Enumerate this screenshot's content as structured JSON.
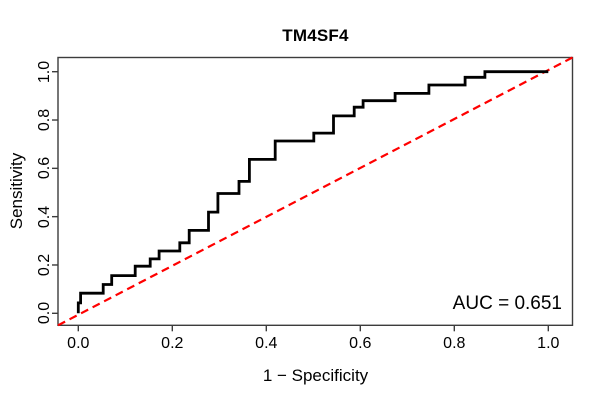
{
  "colors": {
    "frame": "#3c3c3c",
    "tick": "#3c3c3c",
    "text": "#000000",
    "roc_curve": "#000000",
    "diagonal": "#ff0000",
    "background": "#ffffff"
  },
  "chart_data": {
    "type": "line",
    "title": "TM4SF4",
    "xlabel": "1 − Specificity",
    "ylabel": "Sensitivity",
    "xlim": [
      0,
      1
    ],
    "ylim": [
      0,
      1
    ],
    "grid": false,
    "auc_text": "AUC = 0.651",
    "auc_value": 0.651,
    "x_ticks": {
      "values": [
        0,
        0.2,
        0.4,
        0.6,
        0.8,
        1.0
      ],
      "labels": [
        "0.0",
        "0.2",
        "0.4",
        "0.6",
        "0.8",
        "1.0"
      ]
    },
    "y_ticks": {
      "values": [
        0,
        0.2,
        0.4,
        0.6,
        0.8,
        1.0
      ],
      "labels": [
        "0.0",
        "0.2",
        "0.4",
        "0.6",
        "0.8",
        "1.0"
      ]
    },
    "series": [
      {
        "name": "ROC curve",
        "style": "step",
        "color": "#000000",
        "width": 2.8,
        "points": [
          [
            0,
            0
          ],
          [
            0,
            0.043
          ],
          [
            0.005,
            0.043
          ],
          [
            0.005,
            0.083
          ],
          [
            0.053,
            0.083
          ],
          [
            0.053,
            0.119
          ],
          [
            0.071,
            0.119
          ],
          [
            0.071,
            0.156
          ],
          [
            0.121,
            0.156
          ],
          [
            0.121,
            0.195
          ],
          [
            0.153,
            0.195
          ],
          [
            0.153,
            0.225
          ],
          [
            0.172,
            0.225
          ],
          [
            0.172,
            0.258
          ],
          [
            0.216,
            0.258
          ],
          [
            0.216,
            0.292
          ],
          [
            0.236,
            0.292
          ],
          [
            0.236,
            0.343
          ],
          [
            0.277,
            0.343
          ],
          [
            0.277,
            0.419
          ],
          [
            0.297,
            0.419
          ],
          [
            0.297,
            0.496
          ],
          [
            0.342,
            0.496
          ],
          [
            0.342,
            0.546
          ],
          [
            0.364,
            0.546
          ],
          [
            0.364,
            0.637
          ],
          [
            0.419,
            0.637
          ],
          [
            0.419,
            0.713
          ],
          [
            0.501,
            0.713
          ],
          [
            0.501,
            0.746
          ],
          [
            0.543,
            0.746
          ],
          [
            0.543,
            0.817
          ],
          [
            0.587,
            0.817
          ],
          [
            0.587,
            0.853
          ],
          [
            0.606,
            0.853
          ],
          [
            0.606,
            0.88
          ],
          [
            0.674,
            0.88
          ],
          [
            0.674,
            0.91
          ],
          [
            0.746,
            0.91
          ],
          [
            0.746,
            0.945
          ],
          [
            0.823,
            0.945
          ],
          [
            0.823,
            0.977
          ],
          [
            0.865,
            0.977
          ],
          [
            0.865,
            1.0
          ],
          [
            1.0,
            1.0
          ]
        ]
      },
      {
        "name": "chance diagonal",
        "style": "dashed",
        "color": "#ff0000",
        "width": 2.2,
        "points": [
          [
            0,
            0
          ],
          [
            1,
            1
          ]
        ]
      }
    ]
  }
}
